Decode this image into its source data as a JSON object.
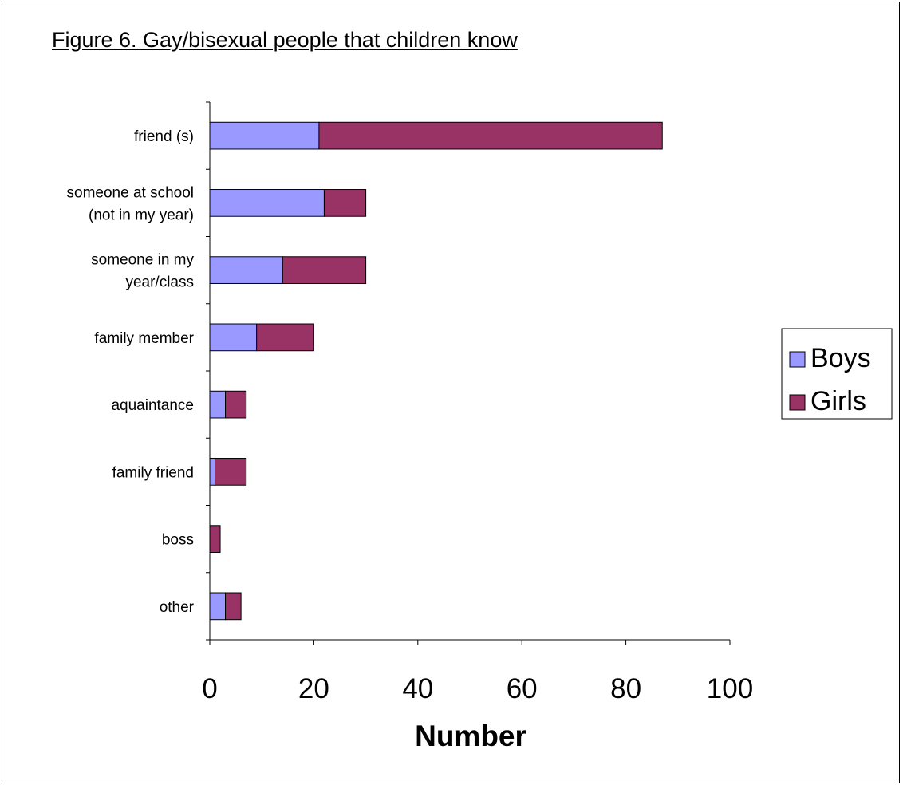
{
  "chart_data": {
    "type": "bar",
    "orientation": "horizontal",
    "stacked": true,
    "title": "Figure 6. Gay/bisexual people that children know",
    "xlabel": "Number",
    "ylabel": "",
    "categories": [
      [
        "friend (s)"
      ],
      [
        "someone at school",
        "(not in my year)"
      ],
      [
        "someone in my",
        "year/class"
      ],
      [
        "family member"
      ],
      [
        "aquaintance"
      ],
      [
        "family friend"
      ],
      [
        "boss"
      ],
      [
        "other"
      ]
    ],
    "series": [
      {
        "name": "Boys",
        "color": "#9999ff",
        "values": [
          21,
          22,
          14,
          9,
          3,
          1,
          0,
          3
        ]
      },
      {
        "name": "Girls",
        "color": "#993366",
        "values": [
          66,
          8,
          16,
          11,
          4,
          6,
          2,
          3
        ]
      }
    ],
    "xlim": [
      0,
      100
    ],
    "xticks": [
      0,
      20,
      40,
      60,
      80,
      100
    ],
    "grid": false,
    "legend_position": "right"
  }
}
